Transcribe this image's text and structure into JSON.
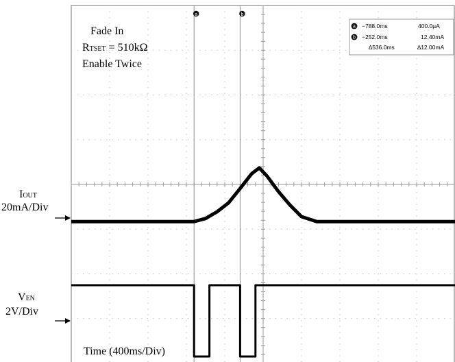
{
  "chart_data": {
    "type": "line",
    "annotations": {
      "title_lines": [
        "Fade In",
        "Enable Twice"
      ],
      "rtset": {
        "symbol": "R",
        "subscript": "TSET",
        "value": " = 510kΩ"
      }
    },
    "xlabel": "Time (400ms/Div)",
    "channels": [
      {
        "symbol": "I",
        "subscript": "OUT",
        "scale": "20mA/Div"
      },
      {
        "symbol": "V",
        "subscript": "EN",
        "scale": "2V/Div"
      }
    ],
    "cursors": {
      "a": {
        "marker": "a",
        "time": "−788.0ms",
        "value": "400.0µA"
      },
      "b": {
        "marker": "b",
        "time": "−252.0ms",
        "value": "12.40mA"
      },
      "delta": {
        "time": "∆536.0ms",
        "value": "∆12.00mA"
      }
    },
    "divisions": {
      "x": 10,
      "y": 8
    },
    "series": [
      {
        "name": "IOUT",
        "x_div": [
          0,
          3.2,
          3.5,
          3.8,
          4.1,
          4.4,
          4.7,
          4.9,
          5.1,
          5.4,
          5.7,
          6.0,
          6.4,
          10
        ],
        "y_div": [
          -0.08,
          -0.08,
          -0.01,
          0.14,
          0.34,
          0.66,
          0.99,
          1.12,
          0.94,
          0.59,
          0.29,
          0.03,
          -0.08,
          -0.08
        ]
      },
      {
        "name": "VEN",
        "x_div": [
          0,
          3.2,
          3.2,
          3.6,
          3.6,
          4.4,
          4.4,
          4.8,
          4.8,
          10
        ],
        "y_div": [
          1.0,
          1.0,
          -1.0,
          -1.0,
          1.0,
          1.0,
          -1.0,
          -1.0,
          1.0,
          1.0
        ]
      }
    ]
  }
}
